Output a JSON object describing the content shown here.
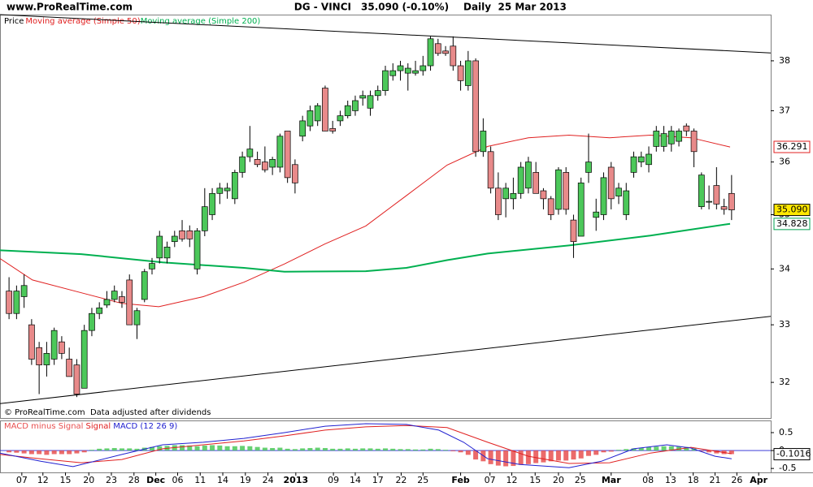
{
  "chart_data": {
    "type": "candlestick",
    "site": "www.ProRealTime.com",
    "title": "DG - VINCI",
    "quote": "35.090 (-0.10%)",
    "period": "Daily  25 Mar 2013",
    "price_label": "Price",
    "footer_note": "© ProRealTime.com  Data adjusted after dividends",
    "log_scale": true,
    "up_color": "#4cc85a",
    "down_color": "#e88a8a",
    "xlim": [
      -1.2,
      101.2
    ],
    "xticks": [
      {
        "value": 1.7,
        "label": "07"
      },
      {
        "value": 4.5,
        "label": "12"
      },
      {
        "value": 7.5,
        "label": "15"
      },
      {
        "value": 10.6,
        "label": "20"
      },
      {
        "value": 13.6,
        "label": "23"
      },
      {
        "value": 16.6,
        "label": "28"
      },
      {
        "value": 19.5,
        "label": "Dec"
      },
      {
        "value": 22.4,
        "label": "06"
      },
      {
        "value": 25.4,
        "label": "11"
      },
      {
        "value": 28.4,
        "label": "14"
      },
      {
        "value": 31.4,
        "label": "19"
      },
      {
        "value": 34.4,
        "label": "24"
      },
      {
        "value": 38.1,
        "label": "2013"
      },
      {
        "value": 43.1,
        "label": "09"
      },
      {
        "value": 46.0,
        "label": "14"
      },
      {
        "value": 49.0,
        "label": "17"
      },
      {
        "value": 52.1,
        "label": "22"
      },
      {
        "value": 55.0,
        "label": "25"
      },
      {
        "value": 60.0,
        "label": "Feb"
      },
      {
        "value": 63.9,
        "label": "07"
      },
      {
        "value": 66.8,
        "label": "12"
      },
      {
        "value": 69.9,
        "label": "15"
      },
      {
        "value": 73.0,
        "label": "20"
      },
      {
        "value": 75.9,
        "label": "25"
      },
      {
        "value": 80.0,
        "label": "Mar"
      },
      {
        "value": 84.9,
        "label": "08"
      },
      {
        "value": 87.9,
        "label": "13"
      },
      {
        "value": 90.9,
        "label": "18"
      },
      {
        "value": 93.8,
        "label": "21"
      },
      {
        "value": 96.7,
        "label": "26"
      },
      {
        "value": 99.6,
        "label": "Apr"
      }
    ],
    "ylim": [
      31.41,
      38.95
    ],
    "yticks": [
      32,
      33,
      34,
      35,
      36,
      37,
      38
    ],
    "open": [
      33.6,
      33.2,
      33.5,
      33.0,
      32.6,
      32.3,
      32.4,
      32.7,
      32.4,
      32.3,
      31.9,
      32.9,
      33.2,
      33.35,
      33.45,
      33.5,
      33.8,
      33.0,
      33.45,
      34.0,
      34.2,
      34.2,
      34.5,
      34.7,
      34.7,
      34.0,
      34.7,
      35.0,
      35.4,
      35.45,
      35.3,
      35.8,
      36.1,
      36.05,
      36.0,
      35.9,
      35.9,
      36.6,
      35.95,
      36.5,
      36.7,
      36.8,
      37.45,
      36.65,
      36.8,
      36.9,
      37.0,
      37.25,
      37.05,
      37.3,
      37.4,
      37.7,
      37.8,
      37.75,
      37.75,
      37.8,
      37.9,
      38.35,
      38.2,
      38.3,
      37.9,
      37.5,
      38.0,
      36.2,
      36.2,
      35.5,
      35.3,
      35.3,
      35.4,
      35.5,
      35.8,
      35.45,
      35.3,
      35.1,
      35.8,
      34.9,
      34.6,
      35.8,
      34.95,
      35.0,
      35.9,
      35.35,
      35.0,
      35.8,
      36.0,
      35.95,
      36.3,
      36.3,
      36.35,
      36.4,
      36.7,
      36.6,
      35.15,
      35.25,
      35.55,
      35.15,
      35.4
    ],
    "high": [
      33.85,
      33.7,
      33.9,
      33.1,
      32.7,
      32.7,
      32.95,
      32.8,
      32.6,
      32.4,
      33.0,
      33.3,
      33.4,
      33.6,
      33.7,
      33.6,
      33.9,
      33.3,
      34.0,
      34.2,
      34.7,
      34.5,
      34.7,
      34.9,
      34.8,
      34.75,
      35.5,
      35.5,
      35.6,
      35.6,
      35.85,
      36.2,
      36.7,
      36.2,
      36.3,
      36.1,
      36.55,
      36.6,
      36.05,
      36.9,
      37.1,
      37.15,
      37.5,
      36.8,
      37.0,
      37.2,
      37.3,
      37.4,
      37.4,
      37.5,
      37.9,
      37.95,
      38.0,
      37.95,
      38.0,
      38.1,
      38.5,
      38.45,
      38.3,
      38.5,
      38.0,
      38.2,
      38.05,
      36.85,
      36.3,
      35.8,
      35.6,
      35.7,
      36.0,
      36.1,
      36.0,
      35.5,
      35.35,
      35.9,
      35.9,
      35.0,
      35.7,
      36.55,
      35.3,
      35.8,
      36.0,
      35.6,
      35.6,
      36.2,
      36.2,
      36.3,
      36.7,
      36.7,
      36.7,
      36.65,
      36.75,
      36.65,
      35.8,
      35.55,
      35.9,
      35.3,
      35.75
    ],
    "low": [
      33.1,
      33.1,
      33.3,
      32.3,
      31.8,
      32.1,
      32.3,
      32.4,
      32.1,
      31.75,
      31.9,
      32.8,
      33.1,
      33.3,
      33.4,
      33.3,
      33.0,
      32.75,
      33.4,
      33.9,
      34.1,
      34.1,
      34.4,
      34.5,
      34.4,
      33.9,
      34.6,
      34.9,
      35.2,
      35.3,
      35.2,
      35.7,
      36.0,
      35.9,
      35.8,
      35.75,
      35.8,
      35.6,
      35.4,
      36.4,
      36.6,
      36.7,
      36.6,
      36.55,
      36.7,
      36.85,
      36.9,
      37.1,
      36.9,
      37.2,
      37.3,
      37.6,
      37.6,
      37.4,
      37.7,
      37.7,
      37.8,
      38.1,
      38.1,
      37.8,
      37.4,
      37.4,
      36.1,
      36.1,
      35.4,
      34.9,
      34.95,
      35.1,
      35.3,
      35.4,
      35.4,
      35.1,
      34.9,
      35.0,
      35.0,
      34.2,
      34.6,
      35.6,
      34.7,
      34.9,
      35.1,
      35.2,
      34.9,
      35.7,
      35.9,
      35.8,
      36.2,
      36.2,
      36.2,
      36.3,
      36.5,
      35.9,
      35.1,
      35.1,
      35.1,
      35.0,
      34.9
    ],
    "close": [
      33.2,
      33.6,
      33.7,
      32.4,
      32.3,
      32.5,
      32.9,
      32.5,
      32.1,
      31.8,
      32.9,
      33.2,
      33.3,
      33.45,
      33.6,
      33.4,
      33.0,
      33.25,
      33.95,
      34.1,
      34.6,
      34.4,
      34.6,
      34.55,
      34.55,
      34.7,
      35.15,
      35.4,
      35.5,
      35.5,
      35.8,
      36.1,
      36.25,
      35.95,
      35.85,
      36.05,
      36.5,
      35.7,
      35.6,
      36.8,
      37.0,
      37.1,
      36.6,
      36.6,
      36.9,
      37.1,
      37.2,
      37.3,
      37.3,
      37.4,
      37.8,
      37.8,
      37.9,
      37.85,
      37.8,
      37.9,
      38.45,
      38.15,
      38.15,
      37.9,
      37.6,
      38.0,
      36.2,
      36.6,
      35.5,
      35.0,
      35.5,
      35.4,
      35.9,
      36.0,
      35.4,
      35.3,
      35.0,
      35.85,
      35.1,
      34.5,
      35.6,
      36.0,
      35.05,
      35.7,
      35.3,
      35.5,
      35.45,
      36.1,
      36.1,
      36.15,
      36.6,
      36.55,
      36.6,
      36.6,
      36.6,
      36.2,
      35.75,
      35.25,
      35.2,
      35.1,
      35.09
    ],
    "moving_averages": [
      {
        "name": "Moving average (Simple 50)",
        "color": "#e02020",
        "x": [
          -1.2,
          3.1,
          9.6,
          15.0,
          19.9,
          25.8,
          31.2,
          36.6,
          42.0,
          47.4,
          52.9,
          58.2,
          63.6,
          69.0,
          74.4,
          79.8,
          85.2,
          90.6,
          95.8
        ],
        "values": [
          34.19,
          33.8,
          33.57,
          33.38,
          33.32,
          33.5,
          33.76,
          34.09,
          34.46,
          34.79,
          35.37,
          35.94,
          36.3,
          36.47,
          36.52,
          36.47,
          36.52,
          36.47,
          36.29
        ]
      },
      {
        "name": "Moving average (Simple 200)",
        "color": "#00b050",
        "x": [
          -1.2,
          9.6,
          20.4,
          31.2,
          36.6,
          47.4,
          52.8,
          58.2,
          63.6,
          74.4,
          85.2,
          95.8
        ],
        "values": [
          34.34,
          34.27,
          34.12,
          34.02,
          33.95,
          33.96,
          34.02,
          34.16,
          34.28,
          34.43,
          34.61,
          34.83
        ]
      }
    ],
    "trend_lines": [
      {
        "color": "#000000",
        "x": [
          -1.2,
          101.2
        ],
        "values": [
          38.95,
          38.16
        ]
      },
      {
        "color": "#000000",
        "x": [
          -1.2,
          101.2
        ],
        "values": [
          31.64,
          33.15
        ]
      }
    ],
    "price_tags": [
      {
        "value": 36.291,
        "label": "36.291",
        "color": "#e02020",
        "background": "#ffffff"
      },
      {
        "value": 35.09,
        "label": "35.090",
        "color": "#000000",
        "background": "#ffe800"
      },
      {
        "value": 34.828,
        "label": "34.828",
        "color": "#00a050",
        "background": "#ffffff"
      }
    ],
    "macd": {
      "ylim": [
        -0.61,
        0.84
      ],
      "yticks": [
        0.5,
        0,
        -0.5
      ],
      "histogram": {
        "name": "MACD minus Signal",
        "up_color": "#4cc85a",
        "down_color": "#e85050",
        "values": [
          -0.05,
          -0.06,
          -0.08,
          -0.1,
          -0.1,
          -0.12,
          -0.1,
          -0.1,
          -0.1,
          -0.08,
          -0.05,
          0.02,
          0.05,
          0.06,
          0.07,
          0.06,
          0.06,
          0.05,
          0.08,
          0.1,
          0.12,
          0.13,
          0.15,
          0.15,
          0.14,
          0.12,
          0.14,
          0.15,
          0.14,
          0.12,
          0.12,
          0.13,
          0.12,
          0.1,
          0.08,
          0.07,
          0.08,
          0.05,
          0.04,
          0.06,
          0.07,
          0.08,
          0.07,
          0.05,
          0.05,
          0.06,
          0.05,
          0.06,
          0.06,
          0.05,
          0.06,
          0.05,
          0.04,
          0.04,
          0.03,
          0.03,
          0.05,
          0.04,
          0.02,
          -0.02,
          -0.05,
          -0.12,
          -0.25,
          -0.3,
          -0.38,
          -0.42,
          -0.44,
          -0.43,
          -0.4,
          -0.38,
          -0.35,
          -0.33,
          -0.3,
          -0.28,
          -0.28,
          -0.25,
          -0.22,
          -0.15,
          -0.12,
          -0.05,
          -0.03,
          0.02,
          0.04,
          0.06,
          0.08,
          0.1,
          0.11,
          0.12,
          0.12,
          0.11,
          0.1,
          0.06,
          -0.02,
          -0.05,
          -0.08,
          -0.1,
          -0.1
        ]
      },
      "signal": {
        "name": "Signal",
        "color": "#e02020",
        "x": [
          -1.2,
          4.2,
          9.6,
          15.0,
          20.4,
          25.8,
          31.2,
          36.6,
          42.0,
          47.4,
          52.8,
          58.2,
          63.6,
          69.0,
          74.4,
          79.8,
          85.2,
          90.6,
          96.0
        ],
        "values": [
          -0.11,
          -0.23,
          -0.34,
          -0.25,
          0.05,
          0.16,
          0.27,
          0.41,
          0.57,
          0.66,
          0.7,
          0.64,
          0.23,
          -0.16,
          -0.36,
          -0.34,
          -0.07,
          0.09,
          -0.09
        ]
      },
      "line": {
        "name": "MACD (12 26 9)",
        "color": "#2020d0",
        "x": [
          -1.2,
          4.2,
          8.5,
          15.0,
          20.4,
          25.8,
          31.2,
          36.6,
          42.0,
          47.4,
          52.8,
          57.1,
          60.4,
          63.6,
          67.9,
          74.4,
          78.7,
          83.0,
          87.4,
          90.6,
          93.8,
          96.0
        ],
        "values": [
          -0.07,
          -0.3,
          -0.45,
          -0.11,
          0.16,
          0.23,
          0.34,
          0.5,
          0.68,
          0.75,
          0.73,
          0.57,
          0.23,
          -0.23,
          -0.39,
          -0.48,
          -0.3,
          0.05,
          0.16,
          0.07,
          -0.16,
          -0.23
        ]
      },
      "tag": -0.1016
    }
  }
}
